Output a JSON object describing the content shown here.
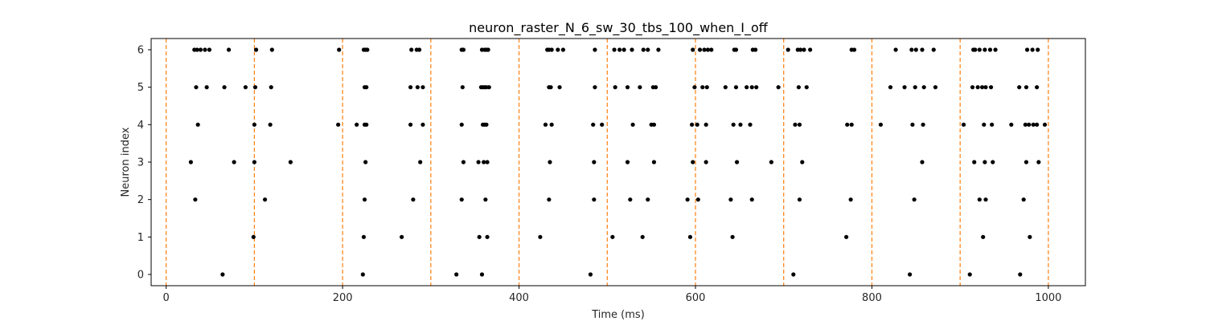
{
  "chart_data": {
    "type": "scatter",
    "title": "neuron_raster_N_6_sw_30_tbs_100_when_I_off",
    "xlabel": "Time (ms)",
    "ylabel": "Neuron index",
    "xlim": [
      -17,
      1042
    ],
    "ylim": [
      -0.3,
      6.3
    ],
    "xticks": [
      0,
      200,
      400,
      600,
      800,
      1000
    ],
    "xtick_labels": [
      "0",
      "200",
      "400",
      "600",
      "800",
      "1000"
    ],
    "yticks": [
      0,
      1,
      2,
      3,
      4,
      5,
      6
    ],
    "ytick_labels": [
      "0",
      "1",
      "2",
      "3",
      "4",
      "5",
      "6"
    ],
    "vlines": [
      0,
      100,
      200,
      300,
      400,
      500,
      600,
      700,
      800,
      900,
      1000
    ],
    "vline_color": "#ff7f0e",
    "marker_color": "#000000",
    "spikes": [
      {
        "neuron": 6,
        "times": [
          32,
          35,
          39,
          44,
          49,
          71,
          102,
          120,
          196,
          224,
          226,
          228,
          278,
          284,
          287,
          335,
          337,
          358,
          361,
          363,
          365,
          432,
          434,
          437,
          444,
          450,
          486,
          508,
          514,
          519,
          528,
          541,
          546,
          558,
          597,
          605,
          610,
          614,
          618,
          644,
          646,
          665,
          668,
          705,
          716,
          719,
          723,
          730,
          777,
          780,
          827,
          845,
          850,
          857,
          870,
          915,
          917,
          922,
          928,
          934,
          940,
          976,
          982,
          988
        ]
      },
      {
        "neuron": 5,
        "times": [
          34,
          46,
          66,
          90,
          101,
          119,
          225,
          227,
          277,
          285,
          291,
          336,
          357,
          359,
          361,
          363,
          366,
          434,
          436,
          446,
          486,
          509,
          523,
          537,
          552,
          555,
          599,
          608,
          613,
          634,
          646,
          658,
          664,
          669,
          694,
          717,
          726,
          821,
          837,
          849,
          859,
          872,
          914,
          920,
          925,
          929,
          935,
          967,
          975,
          987
        ]
      },
      {
        "neuron": 4,
        "times": [
          36,
          100,
          118,
          195,
          216,
          225,
          227,
          277,
          291,
          335,
          359,
          361,
          363,
          430,
          437,
          484,
          494,
          529,
          550,
          553,
          596,
          602,
          612,
          643,
          651,
          662,
          713,
          718,
          772,
          777,
          810,
          846,
          858,
          904,
          927,
          936,
          958,
          974,
          978,
          983,
          987,
          996
        ]
      },
      {
        "neuron": 3,
        "times": [
          28,
          77,
          100,
          141,
          226,
          288,
          337,
          354,
          360,
          364,
          435,
          485,
          523,
          553,
          597,
          612,
          647,
          686,
          721,
          857,
          916,
          928,
          937,
          975,
          989
        ]
      },
      {
        "neuron": 2,
        "times": [
          33,
          112,
          225,
          280,
          335,
          362,
          434,
          485,
          526,
          546,
          591,
          603,
          640,
          664,
          718,
          776,
          848,
          922,
          929,
          972
        ]
      },
      {
        "neuron": 1,
        "times": [
          99,
          224,
          267,
          355,
          364,
          424,
          506,
          540,
          594,
          642,
          771,
          926,
          979
        ]
      },
      {
        "neuron": 0,
        "times": [
          64,
          223,
          329,
          358,
          481,
          711,
          843,
          911,
          968
        ]
      }
    ]
  }
}
